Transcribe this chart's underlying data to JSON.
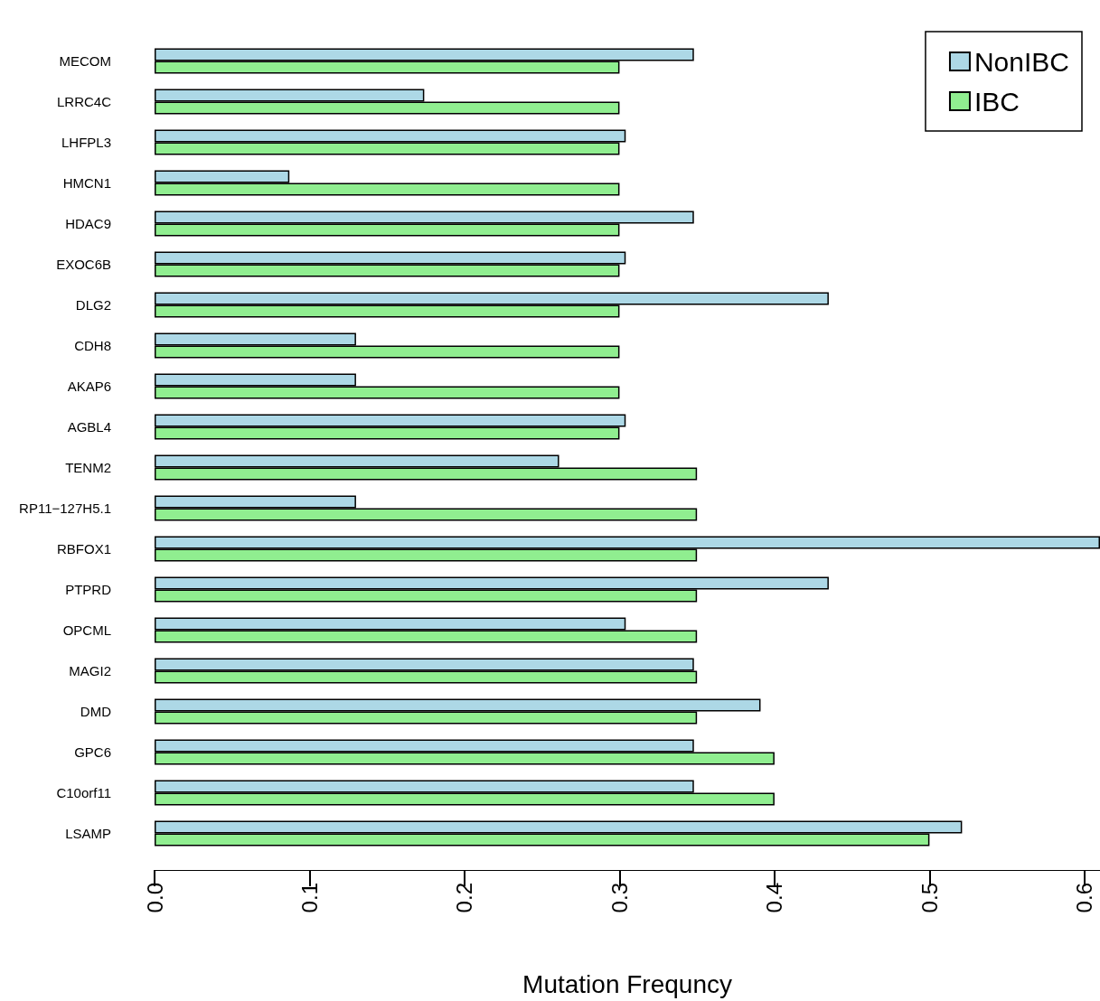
{
  "chart_data": {
    "type": "bar",
    "orientation": "horizontal",
    "xlabel": "Mutation Frequncy",
    "categories": [
      "MECOM",
      "LRRC4C",
      "LHFPL3",
      "HMCN1",
      "HDAC9",
      "EXOC6B",
      "DLG2",
      "CDH8",
      "AKAP6",
      "AGBL4",
      "TENM2",
      "RP11−127H5.1",
      "RBFOX1",
      "PTPRD",
      "OPCML",
      "MAGI2",
      "DMD",
      "GPC6",
      "C10orf11",
      "LSAMP"
    ],
    "series": [
      {
        "name": "NonIBC",
        "color": "#add8e6",
        "values": [
          0.348,
          0.174,
          0.304,
          0.087,
          0.348,
          0.304,
          0.435,
          0.13,
          0.13,
          0.304,
          0.261,
          0.13,
          0.61,
          0.435,
          0.304,
          0.348,
          0.391,
          0.348,
          0.348,
          0.521
        ]
      },
      {
        "name": "IBC",
        "color": "#90ee90",
        "values": [
          0.3,
          0.3,
          0.3,
          0.3,
          0.3,
          0.3,
          0.3,
          0.3,
          0.3,
          0.3,
          0.35,
          0.35,
          0.35,
          0.35,
          0.35,
          0.35,
          0.35,
          0.4,
          0.4,
          0.5
        ]
      }
    ],
    "xlim": [
      0,
      0.61
    ],
    "xticks": [
      {
        "value": 0,
        "label": "0.0"
      },
      {
        "value": 0.1,
        "label": "0.1"
      },
      {
        "value": 0.2,
        "label": "0.2"
      },
      {
        "value": 0.3,
        "label": "0.3"
      },
      {
        "value": 0.4,
        "label": "0.4"
      },
      {
        "value": 0.5,
        "label": "0.5"
      },
      {
        "value": 0.6,
        "label": "0.6"
      }
    ],
    "grid": false,
    "legend": "top right"
  }
}
